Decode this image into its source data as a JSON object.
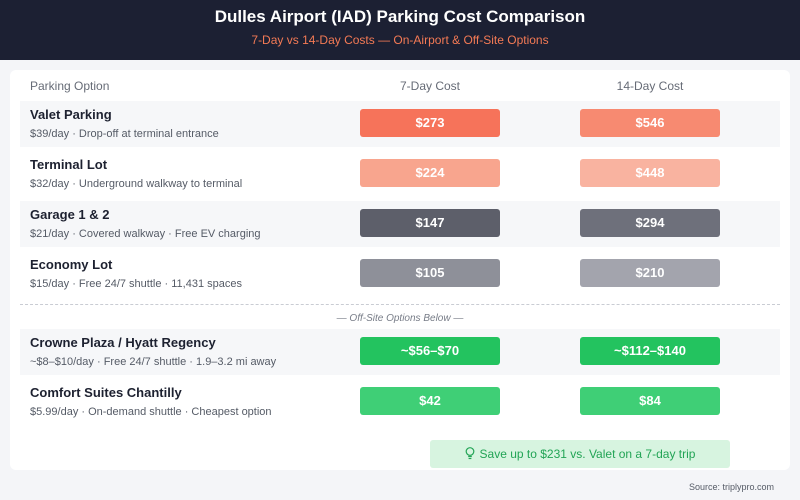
{
  "header": {
    "title": "Dulles Airport (IAD) Parking Cost Comparison",
    "subtitle": "7-Day vs 14-Day Costs — On-Airport & Off-Site Options"
  },
  "columns": {
    "option": "Parking Option",
    "seven_day": "7-Day Cost",
    "fourteen_day": "14-Day Cost"
  },
  "rows": [
    {
      "name": "Valet Parking",
      "desc": "$39/day · Drop-off at terminal entrance",
      "cost7": "$273",
      "cost14": "$546",
      "color7": "#f6735a",
      "color14": "#f78a71"
    },
    {
      "name": "Terminal Lot",
      "desc": "$32/day · Underground walkway to terminal",
      "cost7": "$224",
      "cost14": "$448",
      "color7": "#f8a58e",
      "color14": "#f9b3a0"
    },
    {
      "name": "Garage 1 & 2",
      "desc": "$21/day · Covered walkway · Free EV charging",
      "cost7": "$147",
      "cost14": "$294",
      "color7": "#5d5f6a",
      "color14": "#6e707b"
    },
    {
      "name": "Economy Lot",
      "desc": "$15/day · Free 24/7 shuttle · 11,431 spaces",
      "cost7": "$105",
      "cost14": "$210",
      "color7": "#8e9099",
      "color14": "#a3a4ad"
    },
    {
      "name": "Crowne Plaza / Hyatt Regency",
      "desc": "~$8–$10/day · Free 24/7 shuttle · 1.9–3.2 mi away",
      "cost7": "~$56–$70",
      "cost14": "~$112–$140",
      "color7": "#23c35f",
      "color14": "#23c35f"
    },
    {
      "name": "Comfort Suites Chantilly",
      "desc": "$5.99/day · On-demand shuttle · Cheapest option",
      "cost7": "$42",
      "cost14": "$84",
      "color7": "#3fcf76",
      "color14": "#3fcf76"
    }
  ],
  "offsite_label": "— Off-Site Options Below —",
  "savings": {
    "text": "Save up to $231 vs. Valet on a 7-day trip",
    "icon": "lightbulb-icon"
  },
  "source": "Source: triplypro.com",
  "colors": {
    "header_bg": "#1c2033",
    "subtitle": "#f47a55",
    "savings_bg": "#d7f4e0",
    "savings_text": "#22a455"
  }
}
